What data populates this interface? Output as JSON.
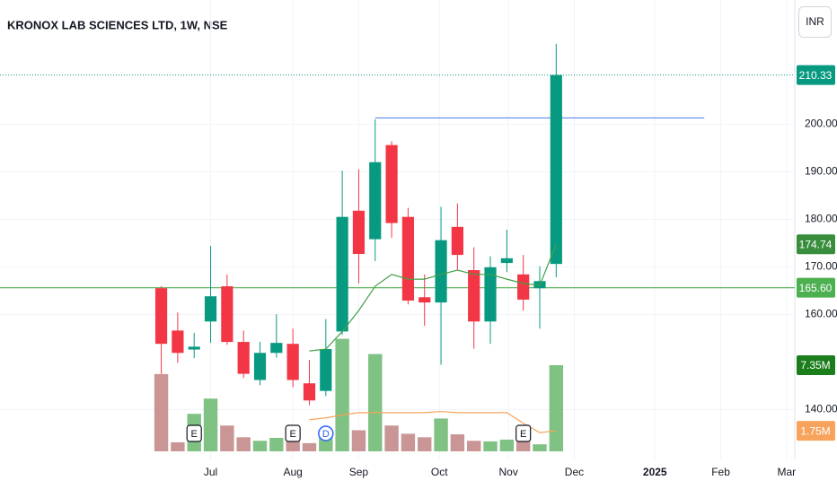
{
  "chart_data": {
    "type": "candlestick",
    "title": "KRONOX LAB SCIENCES LTD, 1W, NSE",
    "currency": "INR",
    "up_color": "#089981",
    "down_color": "#f23645",
    "open": [
      165.5,
      156.6,
      152.6,
      158.5,
      165.9,
      154.2,
      146.2,
      151.9,
      153.8,
      145.5,
      143.9,
      156.4,
      181.8,
      175.8,
      195.6,
      180.5,
      163.6,
      162.5,
      178.4,
      169.3,
      158.5,
      170.8,
      168.4,
      165.5,
      170.6
    ],
    "high": [
      165.9,
      160.4,
      156.1,
      174.4,
      168.4,
      156.6,
      154.2,
      160.0,
      157.0,
      150.4,
      159.0,
      190.2,
      190.5,
      201.0,
      196.4,
      182.4,
      168.4,
      182.6,
      183.3,
      174.1,
      172.2,
      177.8,
      172.5,
      170.1,
      216.9
    ],
    "low": [
      147.5,
      149.8,
      150.8,
      154.0,
      153.6,
      146.6,
      145.1,
      150.9,
      144.7,
      140.9,
      142.8,
      155.7,
      166.5,
      171.2,
      176.1,
      162.1,
      157.6,
      149.4,
      169.3,
      152.8,
      153.8,
      168.9,
      160.8,
      157.0,
      167.8
    ],
    "close": [
      153.8,
      151.9,
      153.2,
      163.8,
      154.2,
      147.5,
      151.9,
      154.0,
      146.2,
      141.9,
      152.7,
      180.5,
      172.7,
      192.0,
      179.2,
      162.9,
      162.5,
      175.6,
      172.5,
      158.5,
      169.9,
      171.8,
      163.1,
      167.0,
      210.33
    ],
    "volume": [
      6.59,
      0.77,
      3.2,
      4.5,
      2.2,
      1.2,
      0.9,
      1.15,
      2.1,
      0.7,
      1.8,
      9.6,
      1.8,
      8.3,
      2.2,
      1.5,
      1.2,
      2.8,
      1.45,
      0.9,
      0.85,
      1.0,
      1.9,
      0.6,
      7.35
    ],
    "volume_up_color": "#7fc283",
    "volume_down_color": "#c99595",
    "ma": {
      "color": "#43a047",
      "values": [
        null,
        null,
        null,
        null,
        null,
        null,
        null,
        null,
        null,
        152.3,
        152.7,
        156.4,
        160.8,
        165.9,
        168.4,
        167.4,
        167.4,
        168.4,
        169.3,
        168.4,
        168.4,
        167.4,
        166.5,
        166.1,
        174.74
      ]
    },
    "volume_ma": {
      "color": "#f7a35c",
      "values": [
        null,
        null,
        null,
        null,
        null,
        null,
        null,
        null,
        null,
        2.7,
        2.85,
        3.1,
        3.3,
        3.3,
        3.3,
        3.3,
        3.3,
        3.4,
        3.3,
        3.3,
        3.3,
        3.3,
        2.4,
        1.6,
        1.75
      ]
    },
    "levels": [
      {
        "value": 201.3,
        "from": 13,
        "to": 33,
        "color": "#5b8def"
      },
      {
        "value": 165.6,
        "color": "#4caf50"
      }
    ],
    "markers": [
      {
        "index": 2,
        "label": "E"
      },
      {
        "index": 8,
        "label": "E"
      },
      {
        "index": 10,
        "label": "D"
      },
      {
        "index": 22,
        "label": "E"
      }
    ],
    "price_labels": [
      {
        "value": 210.33,
        "label": "210.33",
        "color": "#089981",
        "scale": "price"
      },
      {
        "value": 174.74,
        "label": "174.74",
        "color": "#388e3c",
        "scale": "price"
      },
      {
        "value": 165.6,
        "label": "165.60",
        "color": "#4caf50",
        "scale": "price"
      },
      {
        "value": 7.35,
        "label": "7.35M",
        "color": "#1b7d1b",
        "scale": "volume"
      },
      {
        "value": 1.75,
        "label": "1.75M",
        "color": "#f7a35c",
        "scale": "volume"
      }
    ],
    "xlim": [
      -9.8,
      38.5
    ],
    "xticks": [
      {
        "value": 3.0,
        "label": "Jul"
      },
      {
        "value": 8.0,
        "label": "Aug"
      },
      {
        "value": 12.0,
        "label": "Sep"
      },
      {
        "value": 16.9,
        "label": "Oct"
      },
      {
        "value": 21.1,
        "label": "Nov"
      },
      {
        "value": 25.1,
        "label": "Dec"
      },
      {
        "value": 30.0,
        "label": "2025"
      },
      {
        "value": 34.0,
        "label": "Feb"
      },
      {
        "value": 38.0,
        "label": "Mar"
      }
    ],
    "ylim": [
      129.5,
      226.1
    ],
    "yticks": [
      {
        "value": 140,
        "label": "140.00"
      },
      {
        "value": 160,
        "label": "160.00"
      },
      {
        "value": 170,
        "label": "170.00"
      },
      {
        "value": 180,
        "label": "180.00"
      },
      {
        "value": 190,
        "label": "190.00"
      },
      {
        "value": 200,
        "label": "200.00"
      }
    ],
    "volume_lim": [
      0,
      38.5
    ],
    "grid": true
  }
}
